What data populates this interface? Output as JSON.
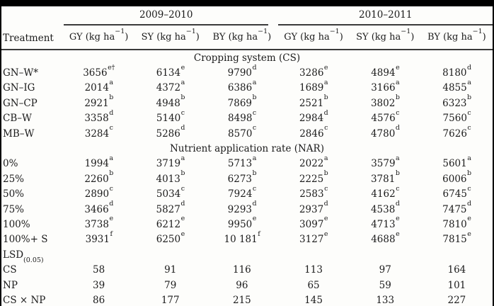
{
  "page": {
    "background": "#fdfdfb",
    "text_color": "#1b1b1b",
    "rule_color": "#3a3a3a",
    "frame_color": "#000000"
  },
  "table": {
    "treatment_header": "Treatment",
    "year_groups": [
      "2009–2010",
      "2010–2011"
    ],
    "measure_headers": [
      {
        "pre": "GY (kg ha",
        "sup": "−1",
        "post": ")"
      },
      {
        "pre": "SY (kg ha",
        "sup": "−1",
        "post": ")"
      },
      {
        "pre": "BY (kg ha",
        "sup": "−1",
        "post": ")"
      },
      {
        "pre": "GY (kg ha",
        "sup": "−1",
        "post": ")"
      },
      {
        "pre": "SY (kg ha",
        "sup": "−1",
        "post": ")"
      },
      {
        "pre": "BY (kg ha",
        "sup": "−1",
        "post": ")"
      }
    ],
    "rows": [
      {
        "type": "section",
        "label": "Cropping system (CS)"
      },
      {
        "type": "data",
        "label": "GN–W*",
        "cells": [
          {
            "v": "3656",
            "s": "e†"
          },
          {
            "v": "6134",
            "s": "e"
          },
          {
            "v": "9790",
            "s": "d"
          },
          {
            "v": "3286",
            "s": "e"
          },
          {
            "v": "4894",
            "s": "e"
          },
          {
            "v": "8180",
            "s": "d"
          }
        ]
      },
      {
        "type": "data",
        "label": "GN–IG",
        "cells": [
          {
            "v": "2014",
            "s": "a"
          },
          {
            "v": "4372",
            "s": "a"
          },
          {
            "v": "6386",
            "s": "a"
          },
          {
            "v": "1689",
            "s": "a"
          },
          {
            "v": "3166",
            "s": "a"
          },
          {
            "v": "4855",
            "s": "a"
          }
        ]
      },
      {
        "type": "data",
        "label": "GN–CP",
        "cells": [
          {
            "v": "2921",
            "s": "b"
          },
          {
            "v": "4948",
            "s": "b"
          },
          {
            "v": "7869",
            "s": "b"
          },
          {
            "v": "2521",
            "s": "b"
          },
          {
            "v": "3802",
            "s": "b"
          },
          {
            "v": "6323",
            "s": "b"
          }
        ]
      },
      {
        "type": "data",
        "label": "CB–W",
        "cells": [
          {
            "v": "3358",
            "s": "d"
          },
          {
            "v": "5140",
            "s": "c"
          },
          {
            "v": "8498",
            "s": "c"
          },
          {
            "v": "2984",
            "s": "d"
          },
          {
            "v": "4576",
            "s": "c"
          },
          {
            "v": "7560",
            "s": "c"
          }
        ]
      },
      {
        "type": "data",
        "label": "MB–W",
        "cells": [
          {
            "v": "3284",
            "s": "c"
          },
          {
            "v": "5286",
            "s": "d"
          },
          {
            "v": "8570",
            "s": "c"
          },
          {
            "v": "2846",
            "s": "c"
          },
          {
            "v": "4780",
            "s": "d"
          },
          {
            "v": "7626",
            "s": "c"
          }
        ]
      },
      {
        "type": "section",
        "label": "Nutrient application rate (NAR)"
      },
      {
        "type": "data",
        "label": "0%",
        "cells": [
          {
            "v": "1994",
            "s": "a"
          },
          {
            "v": "3719",
            "s": "a"
          },
          {
            "v": "5713",
            "s": "a"
          },
          {
            "v": "2022",
            "s": "a"
          },
          {
            "v": "3579",
            "s": "a"
          },
          {
            "v": "5601",
            "s": "a"
          }
        ]
      },
      {
        "type": "data",
        "label": "25%",
        "cells": [
          {
            "v": "2260",
            "s": "b"
          },
          {
            "v": "4013",
            "s": "b"
          },
          {
            "v": "6273",
            "s": "b"
          },
          {
            "v": "2225",
            "s": "b"
          },
          {
            "v": "3781",
            "s": "b"
          },
          {
            "v": "6006",
            "s": "b"
          }
        ]
      },
      {
        "type": "data",
        "label": "50%",
        "cells": [
          {
            "v": "2890",
            "s": "c"
          },
          {
            "v": "5034",
            "s": "c"
          },
          {
            "v": "7924",
            "s": "c"
          },
          {
            "v": "2583",
            "s": "c"
          },
          {
            "v": "4162",
            "s": "c"
          },
          {
            "v": "6745",
            "s": "c"
          }
        ]
      },
      {
        "type": "data",
        "label": "75%",
        "cells": [
          {
            "v": "3466",
            "s": "d"
          },
          {
            "v": "5827",
            "s": "d"
          },
          {
            "v": "9293",
            "s": "d"
          },
          {
            "v": "2937",
            "s": "d"
          },
          {
            "v": "4538",
            "s": "d"
          },
          {
            "v": "7475",
            "s": "d"
          }
        ]
      },
      {
        "type": "data",
        "label": "100%",
        "cells": [
          {
            "v": "3738",
            "s": "e"
          },
          {
            "v": "6212",
            "s": "e"
          },
          {
            "v": "9950",
            "s": "e"
          },
          {
            "v": "3097",
            "s": "e"
          },
          {
            "v": "4713",
            "s": "e"
          },
          {
            "v": "7810",
            "s": "e"
          }
        ]
      },
      {
        "type": "data",
        "label": "100%+ S",
        "cells": [
          {
            "v": "3931",
            "s": "f"
          },
          {
            "v": "6250",
            "s": "e"
          },
          {
            "v": "10 181",
            "s": "f"
          },
          {
            "v": "3127",
            "s": "e"
          },
          {
            "v": "4688",
            "s": "e"
          },
          {
            "v": "7815",
            "s": "e"
          }
        ]
      },
      {
        "type": "lsd",
        "label": "LSD",
        "sub": "(0.05)"
      },
      {
        "type": "data",
        "label": "CS",
        "cells": [
          {
            "v": "58"
          },
          {
            "v": "91"
          },
          {
            "v": "116"
          },
          {
            "v": "113"
          },
          {
            "v": "97"
          },
          {
            "v": "164"
          }
        ]
      },
      {
        "type": "data",
        "label": "NP",
        "cells": [
          {
            "v": "39"
          },
          {
            "v": "79"
          },
          {
            "v": "96"
          },
          {
            "v": "65"
          },
          {
            "v": "59"
          },
          {
            "v": "101"
          }
        ]
      },
      {
        "type": "data",
        "label": "CS × NP",
        "cells": [
          {
            "v": "86"
          },
          {
            "v": "177"
          },
          {
            "v": "215"
          },
          {
            "v": "145"
          },
          {
            "v": "133"
          },
          {
            "v": "227"
          }
        ]
      }
    ]
  }
}
